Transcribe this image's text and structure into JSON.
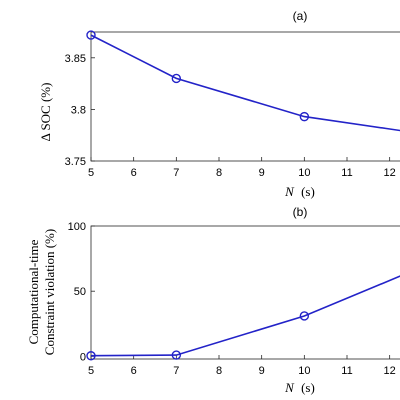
{
  "chart_data": [
    {
      "type": "line",
      "panel_label": "(a)",
      "ylabel": "Δ SOC (%)",
      "xlabel_var": "N",
      "xlabel_unit": "(s)",
      "xlim": [
        5,
        12.5
      ],
      "ylim": [
        3.75,
        3.875
      ],
      "xticks": [
        "5",
        "6",
        "7",
        "8",
        "9",
        "10",
        "11",
        "12"
      ],
      "yticks": [
        "3.75",
        "3.8",
        "3.85"
      ],
      "grid": false,
      "series": [
        {
          "x": [
            5,
            7,
            10,
            12.5
          ],
          "y": [
            3.872,
            3.83,
            3.793,
            3.778
          ]
        }
      ],
      "color": "#2323c8"
    },
    {
      "type": "line",
      "panel_label": "(b)",
      "ylabel_lines": [
        "Computational-time",
        "Constraint violation (%)"
      ],
      "xlabel_var": "N",
      "xlabel_unit": "(s)",
      "xlim": [
        5,
        12.5
      ],
      "ylim": [
        -2,
        100
      ],
      "xticks": [
        "5",
        "6",
        "7",
        "8",
        "9",
        "10",
        "11",
        "12"
      ],
      "yticks": [
        "0",
        "50",
        "100"
      ],
      "grid": false,
      "series": [
        {
          "x": [
            5,
            7,
            10,
            12.5
          ],
          "y": [
            0.5,
            1,
            31,
            65
          ]
        }
      ],
      "color": "#2323c8"
    }
  ]
}
